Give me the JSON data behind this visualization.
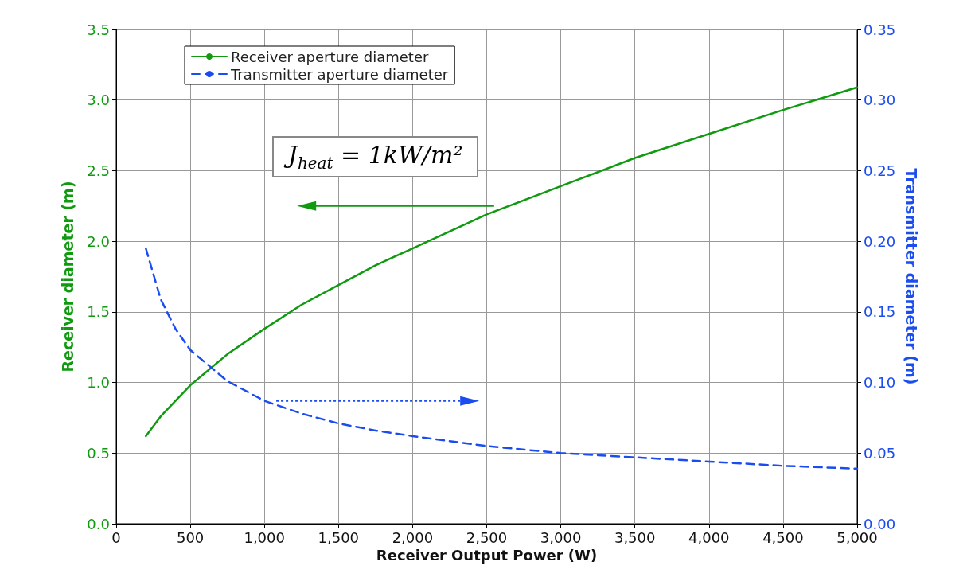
{
  "chart_data": {
    "type": "line",
    "xlabel": "Receiver Output Power (W)",
    "ylabel": "Receiver diameter (m)",
    "y2label": "Transmitter diameter (m)",
    "annotations": [
      "J$_{heat}$ = 1kW/m²"
    ],
    "series": [
      {
        "name": "Receiver aperture diameter",
        "color": "#109a10",
        "line_style": "solid",
        "x": [
          200,
          300,
          400,
          500,
          750,
          1000,
          1250,
          1500,
          1750,
          2000,
          2500,
          3000,
          3500,
          4000,
          4500,
          5000
        ],
        "values": [
          0.62,
          0.76,
          0.87,
          0.98,
          1.2,
          1.38,
          1.55,
          1.69,
          1.83,
          1.95,
          2.19,
          2.39,
          2.59,
          2.76,
          2.93,
          3.09
        ]
      },
      {
        "name": "Transmitter aperture diameter",
        "color": "#1a4cf0",
        "line_style": "dashed",
        "axis": "y2",
        "x": [
          200,
          300,
          400,
          500,
          750,
          1000,
          1250,
          1500,
          1750,
          2000,
          2500,
          3000,
          3500,
          4000,
          4500,
          5000
        ],
        "values": [
          0.195,
          0.159,
          0.138,
          0.123,
          0.101,
          0.087,
          0.078,
          0.071,
          0.066,
          0.062,
          0.055,
          0.05,
          0.047,
          0.044,
          0.041,
          0.039
        ]
      }
    ],
    "xlim": [
      0,
      5000
    ],
    "xticks": [
      0,
      500,
      {
        "value": 1000,
        "label": "1,000"
      },
      {
        "value": 1500,
        "label": "1,500"
      },
      {
        "value": 2000,
        "label": "2,000"
      },
      {
        "value": 2500,
        "label": "2,500"
      },
      {
        "value": 3000,
        "label": "3,000"
      },
      {
        "value": 3500,
        "label": "3,500"
      },
      {
        "value": 4000,
        "label": "4,000"
      },
      {
        "value": 4500,
        "label": "4,500"
      },
      {
        "value": 5000,
        "label": "5,000"
      }
    ],
    "ylim": [
      0,
      3.5
    ],
    "yticks": [
      {
        "value": 0,
        "label": "0.0"
      },
      0.5,
      {
        "value": 1,
        "label": "1.0"
      },
      1.5,
      {
        "value": 2,
        "label": "2.0"
      },
      2.5,
      {
        "value": 3,
        "label": "3.0"
      },
      3.5
    ],
    "y2lim": [
      0,
      0.35
    ],
    "y2ticks": [
      {
        "value": 0,
        "label": "0.00"
      },
      0.05,
      {
        "value": 0.1,
        "label": "0.10"
      },
      0.15,
      {
        "value": 0.2,
        "label": "0.20"
      },
      0.25,
      {
        "value": 0.3,
        "label": "0.30"
      },
      0.35
    ],
    "grid": true,
    "legend": "top left",
    "marker": "none"
  }
}
